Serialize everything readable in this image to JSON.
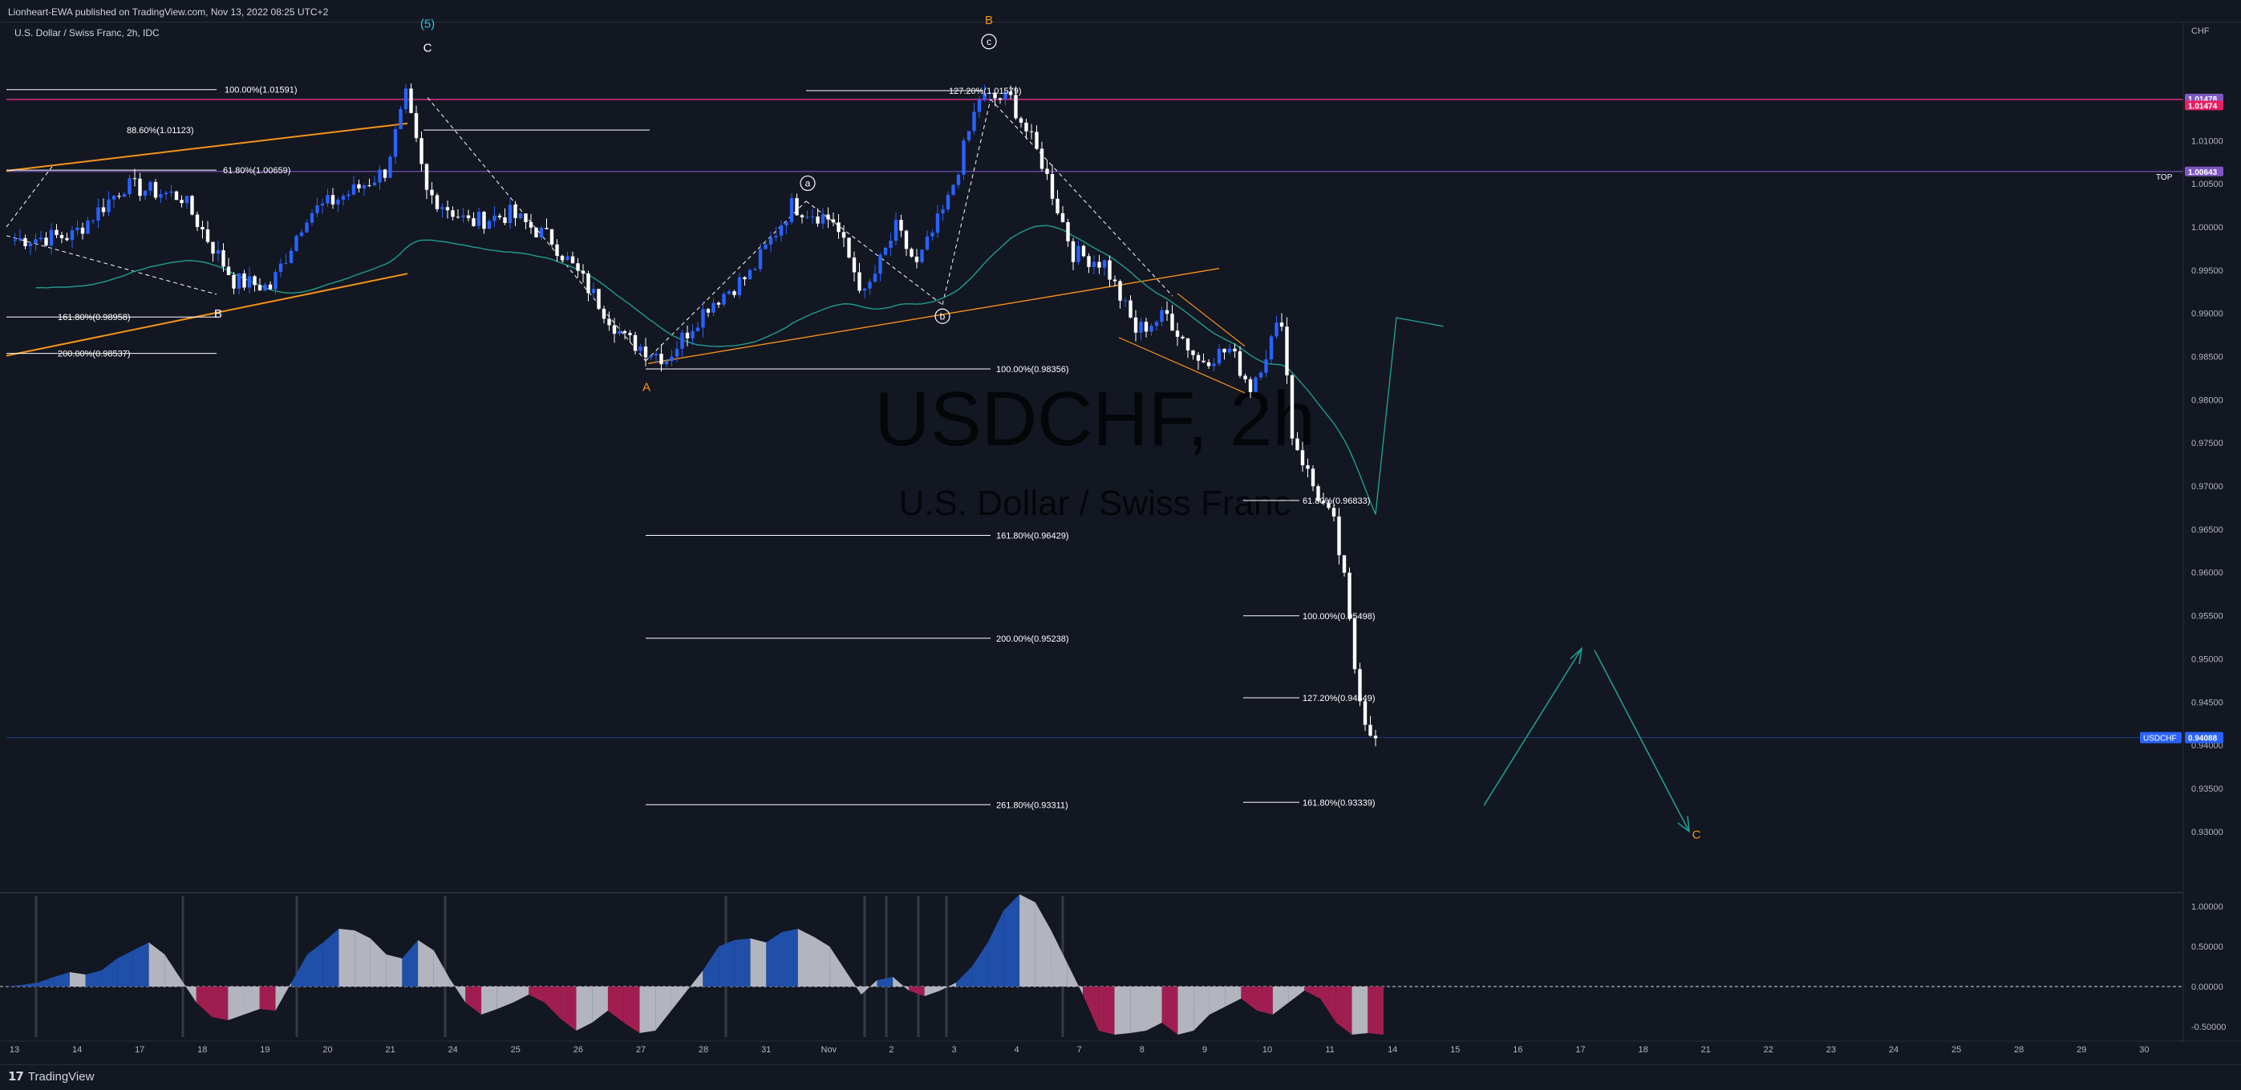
{
  "header": {
    "publish_text": "Lionheart-EWA published on TradingView.com, Nov 13, 2022 08:25 UTC+2",
    "symbol_text": "U.S. Dollar / Swiss Franc, 2h, IDC"
  },
  "watermark": {
    "ticker": "USDCHF, 2h",
    "name": "U.S. Dollar / Swiss Franc"
  },
  "footer": {
    "brand": "TradingView",
    "logo_icon": "tradingview-logo-icon"
  },
  "colors": {
    "background": "#131722",
    "bull_candle": "#2962ff",
    "bear_candle": "#ffffff",
    "orange": "#f7931a",
    "teal": "#1e9e8c",
    "purple": "#7e57c2",
    "pink": "#e91e63",
    "osc_blue": "#1f4fa8",
    "osc_grey": "#b2b5be",
    "osc_red": "#a01e4f"
  },
  "chart_data": [
    {
      "type": "candlestick",
      "title": "USDCHF, 2h",
      "subtitle": "U.S. Dollar / Swiss Franc",
      "y_axis_unit": "CHF",
      "ylim": [
        0.9232,
        1.0235
      ],
      "x_tick_labels": [
        "13",
        "14",
        "17",
        "18",
        "19",
        "20",
        "21",
        "24",
        "25",
        "26",
        "27",
        "28",
        "31",
        "Nov",
        "2",
        "3",
        "4",
        "7",
        "8",
        "9",
        "10",
        "11",
        "14",
        "15",
        "16",
        "17",
        "18",
        "21",
        "22",
        "23",
        "24",
        "25",
        "28",
        "29",
        "30"
      ],
      "y_tick_labels": [
        "1.01000",
        "1.00500",
        "1.00000",
        "0.99500",
        "0.99000",
        "0.98500",
        "0.98000",
        "0.97500",
        "0.97000",
        "0.96500",
        "0.96000",
        "0.95500",
        "0.95000",
        "0.94500",
        "0.94000",
        "0.93500",
        "0.93000"
      ],
      "price_path": {
        "description_points_index_close": [
          [
            0,
            0.9985
          ],
          [
            12,
            0.999
          ],
          [
            22,
            1.0048
          ],
          [
            33,
            1.0035
          ],
          [
            43,
            0.9938
          ],
          [
            50,
            0.993
          ],
          [
            57,
            1.0015
          ],
          [
            66,
            1.0042
          ],
          [
            72,
            1.0065
          ],
          [
            76,
            1.015
          ],
          [
            80,
            1.004
          ],
          [
            88,
            1.0005
          ],
          [
            96,
            1.0015
          ],
          [
            104,
            0.9985
          ],
          [
            110,
            0.9938
          ],
          [
            118,
            0.987
          ],
          [
            126,
            0.9848
          ],
          [
            134,
            0.991
          ],
          [
            142,
            0.9945
          ],
          [
            150,
            1.0025
          ],
          [
            158,
            1.0008
          ],
          [
            164,
            0.992
          ],
          [
            170,
            0.9998
          ],
          [
            174,
            0.9955
          ],
          [
            180,
            1.003
          ],
          [
            186,
            1.015
          ],
          [
            192,
            1.0148
          ],
          [
            198,
            1.0075
          ],
          [
            204,
            0.997
          ],
          [
            210,
            0.9958
          ],
          [
            216,
            0.988
          ],
          [
            222,
            0.9898
          ],
          [
            228,
            0.9845
          ],
          [
            234,
            0.9858
          ],
          [
            238,
            0.9815
          ],
          [
            244,
            0.9895
          ],
          [
            246,
            0.976
          ],
          [
            250,
            0.97
          ],
          [
            254,
            0.9655
          ],
          [
            256,
            0.959
          ],
          [
            258,
            0.949
          ],
          [
            260,
            0.943
          ],
          [
            262,
            0.9408
          ]
        ]
      },
      "last_price": 0.94088,
      "last_price_label": "USDCHF",
      "horizontal_lines": [
        {
          "label": "",
          "price": 1.01478,
          "color": "#7e57c2"
        },
        {
          "label": "",
          "price": 1.01474,
          "color": "#e91e63"
        },
        {
          "label": "TOP",
          "price": 1.00643,
          "color": "#7e57c2"
        }
      ],
      "fib_levels": [
        {
          "label": "100.00%(1.01591)",
          "price": 1.01591
        },
        {
          "label": "88.60%(1.01123)",
          "price": 1.01123
        },
        {
          "label": "61.80%(1.00659)",
          "price": 1.00659
        },
        {
          "label": "161.80%(0.98958)",
          "price": 0.98958
        },
        {
          "label": "200.00%(0.98537)",
          "price": 0.98537
        },
        {
          "label": "127.20%(1.01579)",
          "price": 1.01579
        },
        {
          "label": "100.00%(0.98356)",
          "price": 0.98356
        },
        {
          "label": "161.80%(0.96429)",
          "price": 0.96429
        },
        {
          "label": "200.00%(0.95238)",
          "price": 0.95238
        },
        {
          "label": "261.80%(0.93311)",
          "price": 0.93311
        },
        {
          "label": "61.80%(0.96833)",
          "price": 0.96833
        },
        {
          "label": "100.00%(0.95498)",
          "price": 0.95498
        },
        {
          "label": "127.20%(0.94549)",
          "price": 0.94549
        },
        {
          "label": "161.80%(0.93339)",
          "price": 0.93339
        }
      ],
      "wave_labels": [
        {
          "text": "(5)",
          "color": "#26c6da"
        },
        {
          "text": "C",
          "color": "#ffffff"
        },
        {
          "text": "B",
          "color": "#ffffff"
        },
        {
          "text": "A",
          "color": "#f7931a"
        },
        {
          "text": "B",
          "color": "#f7931a"
        },
        {
          "text": "a",
          "color": "#ffffff",
          "circled": true
        },
        {
          "text": "b",
          "color": "#ffffff",
          "circled": true
        },
        {
          "text": "c",
          "color": "#ffffff",
          "circled": true
        },
        {
          "text": "C",
          "color": "#f7931a"
        }
      ]
    },
    {
      "type": "area",
      "title": "",
      "ylim": [
        -0.65,
        1.15
      ],
      "y_tick_labels": [
        "1.00000",
        "0.50000",
        "0.00000",
        "-0.50000"
      ],
      "values": [
        0.0,
        0.02,
        0.05,
        0.12,
        0.18,
        0.15,
        0.2,
        0.35,
        0.45,
        0.55,
        0.4,
        0.1,
        -0.2,
        -0.38,
        -0.42,
        -0.35,
        -0.28,
        -0.3,
        0.05,
        0.4,
        0.55,
        0.72,
        0.7,
        0.6,
        0.4,
        0.35,
        0.58,
        0.45,
        0.1,
        -0.2,
        -0.35,
        -0.28,
        -0.2,
        -0.1,
        -0.2,
        -0.4,
        -0.55,
        -0.45,
        -0.3,
        -0.45,
        -0.58,
        -0.55,
        -0.3,
        -0.05,
        0.2,
        0.5,
        0.58,
        0.6,
        0.55,
        0.68,
        0.72,
        0.62,
        0.5,
        0.2,
        -0.1,
        0.08,
        0.12,
        -0.05,
        -0.12,
        -0.05,
        0.05,
        0.25,
        0.55,
        0.95,
        1.15,
        1.05,
        0.7,
        0.3,
        -0.1,
        -0.55,
        -0.6,
        -0.58,
        -0.55,
        -0.45,
        -0.6,
        -0.55,
        -0.35,
        -0.25,
        -0.15,
        -0.3,
        -0.35,
        -0.2,
        -0.05,
        -0.15,
        -0.45,
        -0.6,
        -0.58,
        -0.6
      ]
    }
  ]
}
